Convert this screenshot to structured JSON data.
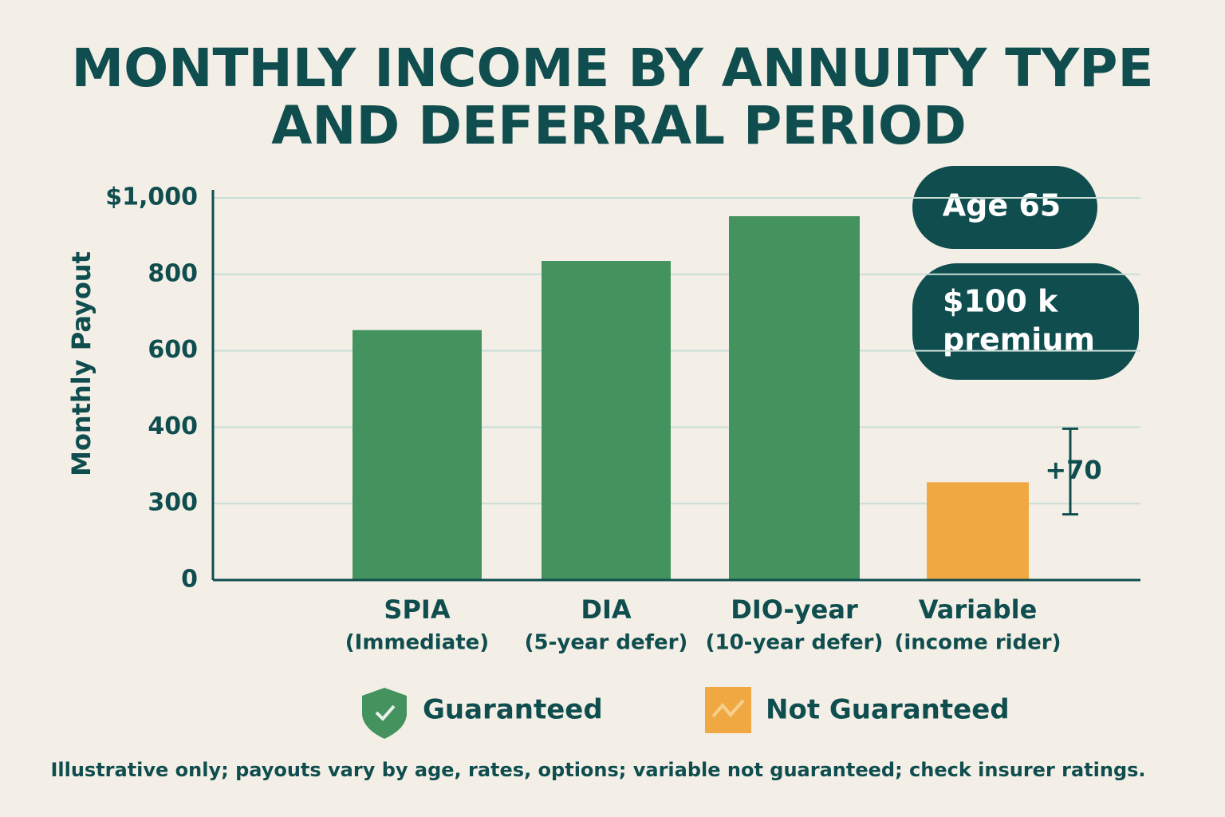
{
  "chart_data": {
    "type": "bar",
    "title": [
      "MONTHLY INCOME BY ANNUITY TYPE",
      "AND DEFERRAL PERIOD"
    ],
    "y_label": "Monthly Payout",
    "categories": [
      "SPIA",
      "DIA",
      "DIO-year",
      "Variable"
    ],
    "category_notes": [
      "(Immediate)",
      "(5-year defer)",
      "(10-year defer)",
      "(income rider)"
    ],
    "values": [
      654,
      835,
      952,
      328
    ],
    "colors": [
      "#44925e",
      "#44925e",
      "#44925e",
      "#f0a843"
    ],
    "errors": [
      null,
      null,
      null,
      70
    ],
    "error_labels": [
      null,
      null,
      null,
      "+70"
    ],
    "ylim": [
      0,
      1000
    ],
    "yticks": [
      {
        "value": 1000,
        "label": "$1,000"
      },
      800,
      600,
      400,
      300,
      0
    ],
    "grid": true,
    "annotations": [
      "Age 65",
      [
        "$100 k",
        "premium"
      ]
    ],
    "legend": [
      {
        "name": "Guaranteed",
        "color": "#44925e"
      },
      {
        "name": "Not Guaranteed",
        "color": "#f0a843"
      }
    ],
    "footnote": "Illustrative only; payouts vary by age, rates, options; variable not guaranteed; check insurer ratings."
  }
}
